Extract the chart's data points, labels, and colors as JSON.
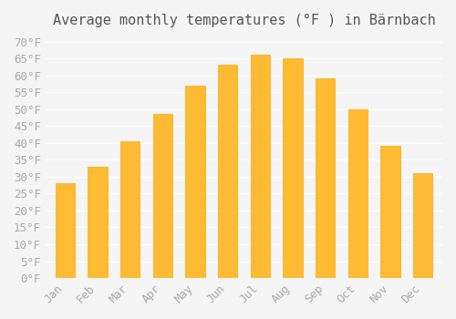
{
  "title": "Average monthly temperatures (°F ) in Bärnbach",
  "months": [
    "Jan",
    "Feb",
    "Mar",
    "Apr",
    "May",
    "Jun",
    "Jul",
    "Aug",
    "Sep",
    "Oct",
    "Nov",
    "Dec"
  ],
  "values": [
    28,
    33,
    40.5,
    48.5,
    57,
    63,
    66,
    65,
    59,
    50,
    39,
    31
  ],
  "bar_color": "#FFBB33",
  "bar_edge_color": "#FFA500",
  "background_color": "#f5f5f5",
  "grid_color": "#ffffff",
  "yticks": [
    0,
    5,
    10,
    15,
    20,
    25,
    30,
    35,
    40,
    45,
    50,
    55,
    60,
    65,
    70
  ],
  "ylim": [
    0,
    72
  ],
  "title_fontsize": 11,
  "tick_fontsize": 9,
  "tick_font_color": "#aaaaaa"
}
